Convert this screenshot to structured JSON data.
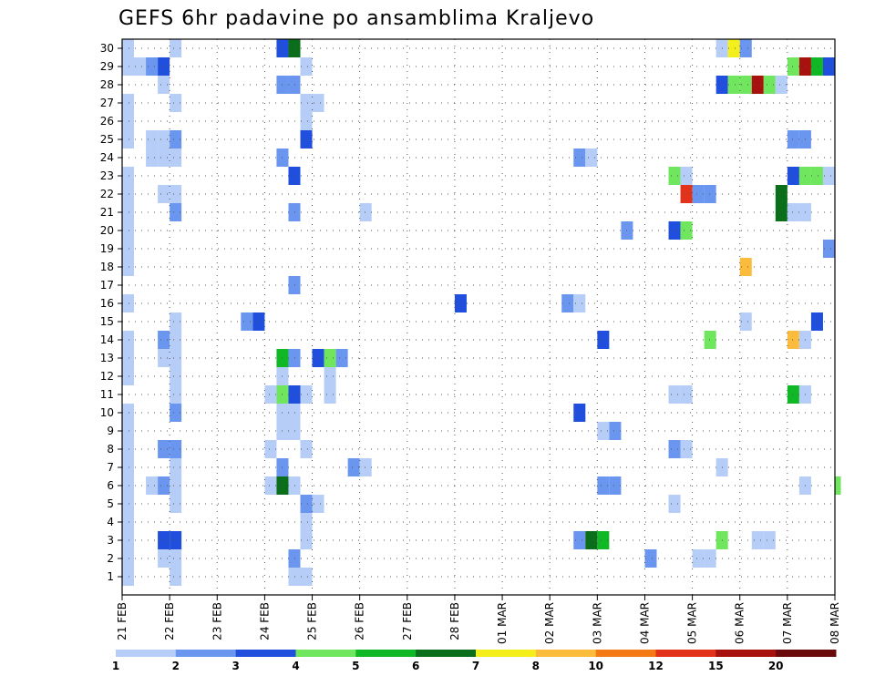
{
  "chart_data": {
    "type": "heatmap",
    "title": "GEFS 6hr padavine po ansamblima Kraljevo",
    "y_ticks": [
      1,
      2,
      3,
      4,
      5,
      6,
      7,
      8,
      9,
      10,
      11,
      12,
      13,
      14,
      15,
      16,
      17,
      18,
      19,
      20,
      21,
      22,
      23,
      24,
      25,
      26,
      27,
      28,
      29,
      30
    ],
    "y_range": [
      0,
      30.5
    ],
    "x_range": [
      0,
      60
    ],
    "x_tick_labels": [
      {
        "x": 0,
        "label": "21 FEB"
      },
      {
        "x": 4,
        "label": "22 FEB"
      },
      {
        "x": 8,
        "label": "23 FEB"
      },
      {
        "x": 12,
        "label": "24 FEB"
      },
      {
        "x": 16,
        "label": "25 FEB"
      },
      {
        "x": 20,
        "label": "26 FEB"
      },
      {
        "x": 24,
        "label": "27 FEB"
      },
      {
        "x": 28,
        "label": "28 FEB"
      },
      {
        "x": 32,
        "label": "01 MAR"
      },
      {
        "x": 36,
        "label": "02 MAR"
      },
      {
        "x": 40,
        "label": "03 MAR"
      },
      {
        "x": 44,
        "label": "04 MAR"
      },
      {
        "x": 48,
        "label": "05 MAR"
      },
      {
        "x": 52,
        "label": "06 MAR"
      },
      {
        "x": 56,
        "label": "07 MAR"
      },
      {
        "x": 60,
        "label": "08 MAR"
      }
    ],
    "colors": {
      "1": "#b6cdf8",
      "2": "#6b96ef",
      "3": "#1f4fdc",
      "4": "#6fe65e",
      "5": "#0fb824",
      "6": "#0a6e1a",
      "7": "#f4ee1a",
      "8": "#fbbb3c",
      "10": "#f47a16",
      "12": "#e2321a",
      "15": "#a8120e",
      "20": "#6b0a0a"
    },
    "legend": {
      "bins": [
        "1",
        "2",
        "3",
        "4",
        "5",
        "6",
        "7",
        "8",
        "10",
        "12",
        "15",
        "20"
      ],
      "labels": [
        "1",
        "2",
        "3",
        "4",
        "5",
        "6",
        "7",
        "8",
        "10",
        "12",
        "15",
        "20"
      ]
    },
    "cells": [
      [
        0,
        30,
        1
      ],
      [
        4,
        30,
        1
      ],
      [
        13,
        30,
        3
      ],
      [
        14,
        30,
        6
      ],
      [
        50,
        30,
        1
      ],
      [
        51,
        30,
        7
      ],
      [
        52,
        30,
        2
      ],
      [
        0,
        29,
        1
      ],
      [
        1,
        29,
        1
      ],
      [
        2,
        29,
        2
      ],
      [
        3,
        29,
        3
      ],
      [
        15,
        29,
        1
      ],
      [
        56,
        29,
        4
      ],
      [
        57,
        29,
        15
      ],
      [
        58,
        29,
        5
      ],
      [
        59,
        29,
        3
      ],
      [
        3,
        28,
        1
      ],
      [
        13,
        28,
        2
      ],
      [
        14,
        28,
        2
      ],
      [
        50,
        28,
        3
      ],
      [
        51,
        28,
        4
      ],
      [
        52,
        28,
        4
      ],
      [
        53,
        28,
        15
      ],
      [
        54,
        28,
        4
      ],
      [
        55,
        28,
        1
      ],
      [
        0,
        27,
        1
      ],
      [
        4,
        27,
        1
      ],
      [
        15,
        27,
        1
      ],
      [
        16,
        27,
        1
      ],
      [
        0,
        26,
        1
      ],
      [
        15,
        26,
        1
      ],
      [
        0,
        25,
        1
      ],
      [
        2,
        25,
        1
      ],
      [
        3,
        25,
        1
      ],
      [
        4,
        25,
        2
      ],
      [
        15,
        25,
        3
      ],
      [
        56,
        25,
        2
      ],
      [
        57,
        25,
        2
      ],
      [
        2,
        24,
        1
      ],
      [
        3,
        24,
        1
      ],
      [
        4,
        24,
        1
      ],
      [
        13,
        24,
        2
      ],
      [
        38,
        24,
        2
      ],
      [
        39,
        24,
        1
      ],
      [
        0,
        23,
        1
      ],
      [
        14,
        23,
        3
      ],
      [
        46,
        23,
        4
      ],
      [
        47,
        23,
        1
      ],
      [
        56,
        23,
        3
      ],
      [
        57,
        23,
        4
      ],
      [
        58,
        23,
        4
      ],
      [
        59,
        23,
        1
      ],
      [
        0,
        22,
        1
      ],
      [
        3,
        22,
        1
      ],
      [
        4,
        22,
        1
      ],
      [
        47,
        22,
        12
      ],
      [
        48,
        22,
        2
      ],
      [
        49,
        22,
        2
      ],
      [
        55,
        22,
        6
      ],
      [
        0,
        21,
        1
      ],
      [
        4,
        21,
        2
      ],
      [
        14,
        21,
        2
      ],
      [
        20,
        21,
        1
      ],
      [
        55,
        21,
        6
      ],
      [
        56,
        21,
        1
      ],
      [
        57,
        21,
        1
      ],
      [
        0,
        20,
        1
      ],
      [
        42,
        20,
        2
      ],
      [
        46,
        20,
        3
      ],
      [
        47,
        20,
        4
      ],
      [
        0,
        19,
        1
      ],
      [
        59,
        19,
        2
      ],
      [
        0,
        18,
        1
      ],
      [
        52,
        18,
        8
      ],
      [
        14,
        17,
        2
      ],
      [
        0,
        16,
        1
      ],
      [
        28,
        16,
        3
      ],
      [
        37,
        16,
        2
      ],
      [
        38,
        16,
        1
      ],
      [
        4,
        15,
        1
      ],
      [
        10,
        15,
        2
      ],
      [
        11,
        15,
        3
      ],
      [
        52,
        15,
        1
      ],
      [
        58,
        15,
        3
      ],
      [
        0,
        14,
        1
      ],
      [
        3,
        14,
        2
      ],
      [
        4,
        14,
        1
      ],
      [
        40,
        14,
        3
      ],
      [
        49,
        14,
        4
      ],
      [
        56,
        14,
        8
      ],
      [
        57,
        14,
        1
      ],
      [
        0,
        13,
        1
      ],
      [
        3,
        13,
        1
      ],
      [
        4,
        13,
        1
      ],
      [
        13,
        13,
        5
      ],
      [
        14,
        13,
        2
      ],
      [
        16,
        13,
        3
      ],
      [
        17,
        13,
        4
      ],
      [
        18,
        13,
        2
      ],
      [
        0,
        12,
        1
      ],
      [
        4,
        12,
        1
      ],
      [
        13,
        12,
        1
      ],
      [
        17,
        12,
        1
      ],
      [
        4,
        11,
        1
      ],
      [
        12,
        11,
        1
      ],
      [
        13,
        11,
        4
      ],
      [
        14,
        11,
        3
      ],
      [
        15,
        11,
        1
      ],
      [
        17,
        11,
        1
      ],
      [
        46,
        11,
        1
      ],
      [
        47,
        11,
        1
      ],
      [
        56,
        11,
        5
      ],
      [
        57,
        11,
        1
      ],
      [
        0,
        10,
        1
      ],
      [
        4,
        10,
        2
      ],
      [
        13,
        10,
        1
      ],
      [
        14,
        10,
        1
      ],
      [
        38,
        10,
        3
      ],
      [
        0,
        9,
        1
      ],
      [
        13,
        9,
        1
      ],
      [
        14,
        9,
        1
      ],
      [
        40,
        9,
        1
      ],
      [
        41,
        9,
        2
      ],
      [
        0,
        8,
        1
      ],
      [
        3,
        8,
        2
      ],
      [
        4,
        8,
        2
      ],
      [
        12,
        8,
        1
      ],
      [
        15,
        8,
        1
      ],
      [
        46,
        8,
        2
      ],
      [
        47,
        8,
        1
      ],
      [
        0,
        7,
        1
      ],
      [
        4,
        7,
        1
      ],
      [
        13,
        7,
        2
      ],
      [
        19,
        7,
        2
      ],
      [
        20,
        7,
        1
      ],
      [
        50,
        7,
        1
      ],
      [
        0,
        6,
        1
      ],
      [
        2,
        6,
        1
      ],
      [
        3,
        6,
        2
      ],
      [
        4,
        6,
        1
      ],
      [
        12,
        6,
        1
      ],
      [
        13,
        6,
        6
      ],
      [
        14,
        6,
        1
      ],
      [
        40,
        6,
        2
      ],
      [
        41,
        6,
        2
      ],
      [
        57,
        6,
        1
      ],
      [
        60,
        6,
        4
      ],
      [
        0,
        5,
        1
      ],
      [
        4,
        5,
        1
      ],
      [
        15,
        5,
        2
      ],
      [
        16,
        5,
        1
      ],
      [
        46,
        5,
        1
      ],
      [
        0,
        4,
        1
      ],
      [
        15,
        4,
        1
      ],
      [
        0,
        3,
        1
      ],
      [
        3,
        3,
        3
      ],
      [
        4,
        3,
        3
      ],
      [
        15,
        3,
        1
      ],
      [
        38,
        3,
        2
      ],
      [
        39,
        3,
        6
      ],
      [
        40,
        3,
        5
      ],
      [
        50,
        3,
        4
      ],
      [
        53,
        3,
        1
      ],
      [
        54,
        3,
        1
      ],
      [
        0,
        2,
        1
      ],
      [
        3,
        2,
        1
      ],
      [
        4,
        2,
        1
      ],
      [
        14,
        2,
        2
      ],
      [
        44,
        2,
        2
      ],
      [
        48,
        2,
        1
      ],
      [
        49,
        2,
        1
      ],
      [
        0,
        1,
        1
      ],
      [
        4,
        1,
        1
      ],
      [
        14,
        1,
        1
      ],
      [
        15,
        1,
        1
      ]
    ]
  }
}
